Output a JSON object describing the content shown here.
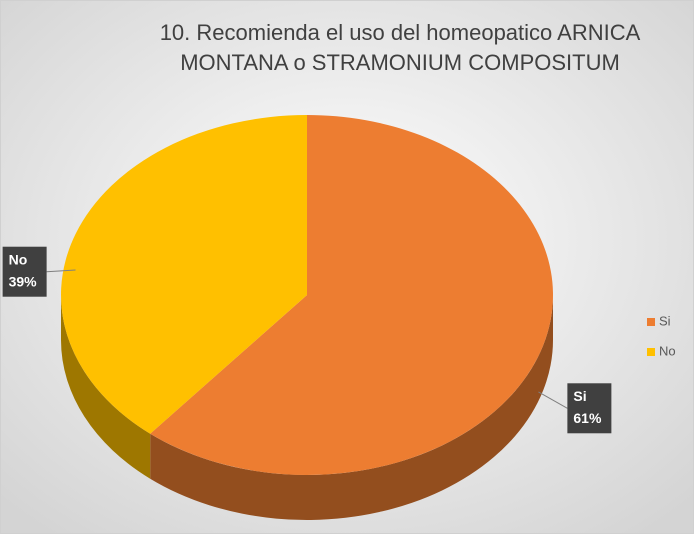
{
  "chart_data": {
    "type": "pie",
    "title": [
      "10. Recomienda el uso del  homeopatico ARNICA",
      "MONTANA o  STRAMONIUM COMPOSITUM"
    ],
    "categories": [
      "Si",
      "No"
    ],
    "values": [
      61,
      39
    ],
    "value_labels": [
      "61%",
      "39%"
    ],
    "colors": [
      "#ED7D31",
      "#FFC000"
    ],
    "legend": "right"
  }
}
